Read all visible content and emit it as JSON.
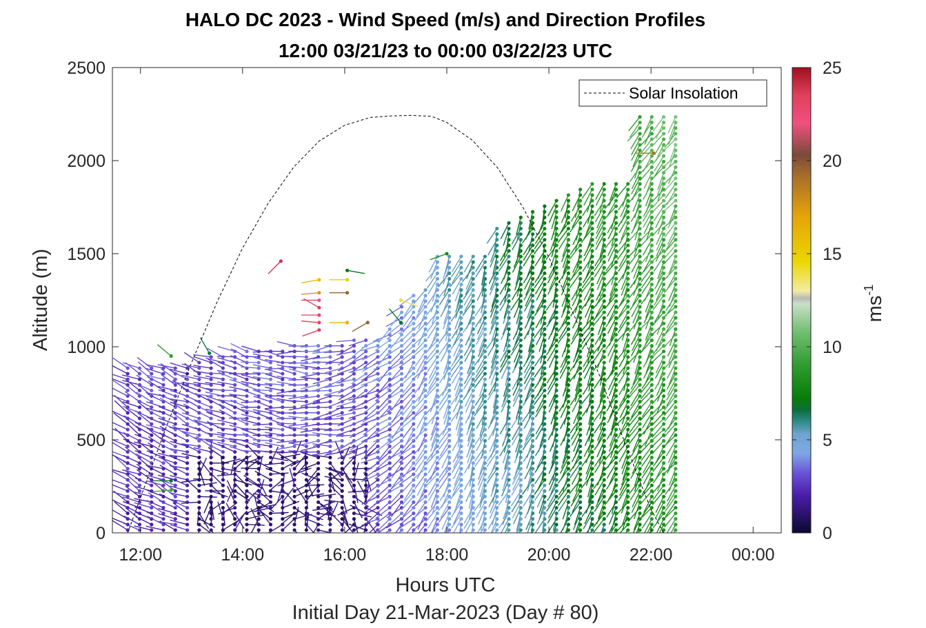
{
  "chart_data": {
    "type": "scatter",
    "title": "HALO DC 2023 - Wind Speed (m/s) and Direction Profiles",
    "subtitle": "12:00 03/21/23 to 00:00 03/22/23  UTC",
    "xlabel": "Hours UTC",
    "xlabel2": "Initial Day 21-Mar-2023 (Day # 80)",
    "ylabel": "Altitude (m)",
    "xlim": [
      11.45,
      24.55
    ],
    "ylim": [
      0,
      2500
    ],
    "x_ticks": [
      {
        "value": 12,
        "label": "12:00"
      },
      {
        "value": 14,
        "label": "14:00"
      },
      {
        "value": 16,
        "label": "16:00"
      },
      {
        "value": 18,
        "label": "18:00"
      },
      {
        "value": 20,
        "label": "20:00"
      },
      {
        "value": 22,
        "label": "22:00"
      },
      {
        "value": 24,
        "label": "00:00"
      }
    ],
    "y_ticks": [
      0,
      500,
      1000,
      1500,
      2000,
      2500
    ],
    "legend": {
      "entries": [
        "Solar Insolation"
      ],
      "placement": "top-right"
    },
    "colorbar": {
      "label_base": "ms",
      "label_exp": "-1",
      "range": [
        0,
        25
      ],
      "ticks": [
        0,
        5,
        10,
        15,
        20,
        25
      ],
      "stops": [
        {
          "v": 0,
          "c": "#0a0a30"
        },
        {
          "v": 2,
          "c": "#4b1ca8"
        },
        {
          "v": 3.2,
          "c": "#6a52d8"
        },
        {
          "v": 4.3,
          "c": "#7fa7e6"
        },
        {
          "v": 5.3,
          "c": "#6fa4cf"
        },
        {
          "v": 6.0,
          "c": "#2e8a86"
        },
        {
          "v": 6.6,
          "c": "#0b6e3a"
        },
        {
          "v": 7.2,
          "c": "#077c07"
        },
        {
          "v": 9.0,
          "c": "#2f9c2f"
        },
        {
          "v": 10.8,
          "c": "#72be72"
        },
        {
          "v": 12.3,
          "c": "#c8e0c8"
        },
        {
          "v": 12.6,
          "c": "#b9b9b9"
        },
        {
          "v": 13.0,
          "c": "#f2eda2"
        },
        {
          "v": 14.6,
          "c": "#ebd600"
        },
        {
          "v": 17.0,
          "c": "#e6a30a"
        },
        {
          "v": 19.2,
          "c": "#a66d2c"
        },
        {
          "v": 20.3,
          "c": "#7a4a3a"
        },
        {
          "v": 22.0,
          "c": "#f0507f"
        },
        {
          "v": 23.5,
          "c": "#e0405c"
        },
        {
          "v": 25,
          "c": "#a0101e"
        }
      ]
    },
    "solar_insolation": {
      "style": "dashed",
      "color": "#000000",
      "points": [
        [
          11.45,
          0
        ],
        [
          11.75,
          0
        ],
        [
          12.5,
          565
        ],
        [
          13.0,
          915
        ],
        [
          13.5,
          1240
        ],
        [
          14.0,
          1530
        ],
        [
          14.5,
          1770
        ],
        [
          15.0,
          1965
        ],
        [
          15.5,
          2105
        ],
        [
          16.0,
          2190
        ],
        [
          16.5,
          2232
        ],
        [
          16.9,
          2240
        ],
        [
          17.3,
          2243
        ],
        [
          17.7,
          2238
        ],
        [
          18.0,
          2205
        ],
        [
          18.5,
          2110
        ],
        [
          19.0,
          1960
        ],
        [
          19.5,
          1745
        ],
        [
          20.0,
          1480
        ],
        [
          20.5,
          1165
        ],
        [
          21.0,
          840
        ],
        [
          21.5,
          475
        ],
        [
          22.0,
          125
        ],
        [
          22.25,
          0
        ],
        [
          24.55,
          0
        ]
      ]
    },
    "wind_profiles": {
      "x_start": 11.75,
      "x_step": 0.2333,
      "count": 47,
      "z_start": 15,
      "z_step": 30,
      "top_heights": [
        900,
        900,
        900,
        900,
        900,
        900,
        920,
        950,
        960,
        980,
        1000,
        1000,
        1000,
        1000,
        1010,
        1010,
        1020,
        1020,
        1020,
        1040,
        1040,
        1060,
        1100,
        1220,
        1300,
        1310,
        1500,
        1510,
        1510,
        1500,
        1500,
        1650,
        1690,
        1700,
        1740,
        1780,
        1800,
        1840,
        1860,
        1880,
        1880,
        1900,
        1890,
        2240,
        2240,
        2240,
        2240
      ],
      "speed_by_hour": [
        [
          11.75,
          2.2
        ],
        [
          14.0,
          2.3
        ],
        [
          16.5,
          2.6
        ],
        [
          17.5,
          3.5
        ],
        [
          18.5,
          4.6
        ],
        [
          19.5,
          5.4
        ],
        [
          20.3,
          6.4
        ],
        [
          21.5,
          7.2
        ],
        [
          22.6,
          8.8
        ]
      ],
      "direction_by_hour": [
        [
          11.75,
          300
        ],
        [
          14.0,
          285
        ],
        [
          15.5,
          270
        ],
        [
          17.0,
          230
        ],
        [
          18.0,
          205
        ],
        [
          19.5,
          200
        ],
        [
          21.0,
          205
        ],
        [
          22.6,
          215
        ]
      ],
      "low_level_gusts": {
        "x_range": [
          13.0,
          16.5
        ],
        "z_max": 420,
        "speed": 0.8
      },
      "upper_anomalies": [
        {
          "x": 14.75,
          "z": 1460,
          "speed": 24,
          "dir": 225
        },
        {
          "x": 15.5,
          "z": 1360,
          "speed": 15.8,
          "dir": 260
        },
        {
          "x": 15.5,
          "z": 1290,
          "speed": 17.5,
          "dir": 265
        },
        {
          "x": 15.5,
          "z": 1250,
          "speed": 22,
          "dir": 270
        },
        {
          "x": 15.5,
          "z": 1210,
          "speed": 23.5,
          "dir": 300
        },
        {
          "x": 15.5,
          "z": 1170,
          "speed": 22.5,
          "dir": 270
        },
        {
          "x": 15.5,
          "z": 1130,
          "speed": 23,
          "dir": 275
        },
        {
          "x": 15.5,
          "z": 1090,
          "speed": 23.5,
          "dir": 250
        },
        {
          "x": 16.05,
          "z": 1360,
          "speed": 15,
          "dir": 270
        },
        {
          "x": 16.05,
          "z": 1290,
          "speed": 19.5,
          "dir": 270
        },
        {
          "x": 16.05,
          "z": 1130,
          "speed": 16.3,
          "dir": 270
        },
        {
          "x": 16.05,
          "z": 1410,
          "speed": 7,
          "dir": 100
        },
        {
          "x": 16.45,
          "z": 1130,
          "speed": 19.5,
          "dir": 240
        },
        {
          "x": 17.1,
          "z": 1250,
          "speed": 14,
          "dir": 110
        },
        {
          "x": 17.1,
          "z": 1130,
          "speed": 7,
          "dir": 320
        },
        {
          "x": 12.6,
          "z": 280,
          "speed": 6.8,
          "dir": 270
        },
        {
          "x": 12.6,
          "z": 230,
          "speed": 9.5,
          "dir": 265
        },
        {
          "x": 12.6,
          "z": 950,
          "speed": 9,
          "dir": 310
        },
        {
          "x": 13.35,
          "z": 965,
          "speed": 6.5,
          "dir": 330
        },
        {
          "x": 22.05,
          "z": 2040,
          "speed": 19,
          "dir": 270
        },
        {
          "x": 18.0,
          "z": 1500,
          "speed": 8,
          "dir": 250
        }
      ]
    }
  }
}
